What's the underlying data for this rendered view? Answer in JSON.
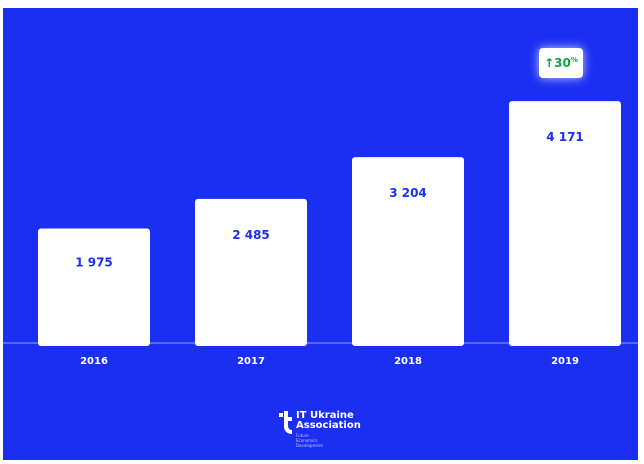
{
  "chart_data": {
    "type": "bar",
    "categories": [
      "2016",
      "2017",
      "2018",
      "2019"
    ],
    "values": [
      1975,
      2485,
      3204,
      4171
    ],
    "value_labels": [
      "1 975",
      "2 485",
      "3 204",
      "4 171"
    ],
    "ylim": [
      0,
      5000
    ],
    "grid": false,
    "colors": {
      "background": "#1a2ff2",
      "bar": "#ffffff",
      "label": "#1a2ff2",
      "badge_text": "#12a33a"
    }
  },
  "growth_badge": {
    "arrow": "↑",
    "value": "30",
    "unit": "%"
  },
  "logo": {
    "name_line1": "IT Ukraine",
    "name_line2": "Association",
    "tagline": "Future Economics Development",
    "icon": "it-ukraine-logo-icon"
  }
}
